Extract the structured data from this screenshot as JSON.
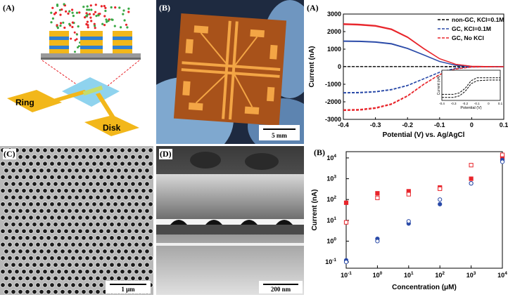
{
  "figure": {
    "schematic": {
      "label": "(A)",
      "ring_label": "Ring",
      "disk_label": "Disk"
    },
    "photo": {
      "label": "(B)",
      "scale": "5 mm"
    },
    "sem_top": {
      "label": "(C)",
      "scale": "1 μm"
    },
    "sem_cross": {
      "label": "(D)",
      "scale": "200 nm"
    },
    "colors": {
      "red": "#e8252b",
      "blue": "#2a4aa8",
      "black": "#000000",
      "gold": "#f2b71a",
      "substrate": "#8fd3ee"
    }
  },
  "chart_data": [
    {
      "label": "(A)",
      "type": "line",
      "xlabel": "Potential (V) vs. Ag/AgCl",
      "ylabel": "Current (nA)",
      "xlim": [
        -0.4,
        0.1
      ],
      "ylim": [
        -3000,
        3000
      ],
      "xticks": [
        "-0.4",
        "-0.3",
        "-0.2",
        "-0.1",
        "0",
        "0.1"
      ],
      "yticks": [
        "-3000",
        "-2000",
        "-1000",
        "0",
        "1000",
        "2000",
        "3000"
      ],
      "legend_position": "top-right",
      "series": [
        {
          "name": "non-GC, KCl=0.1M",
          "color": "#000000",
          "dash": true,
          "x": [
            -0.4,
            -0.3,
            -0.2,
            -0.1,
            0,
            0.1
          ],
          "y": [
            5,
            5,
            5,
            3,
            0,
            0
          ]
        },
        {
          "name": "GC, KCl=0.1M",
          "color": "#2a4aa8",
          "dash": true,
          "x": [
            -0.4,
            -0.35,
            -0.3,
            -0.25,
            -0.2,
            -0.15,
            -0.1,
            -0.05,
            0,
            0.1
          ],
          "y": [
            -1500,
            -1490,
            -1440,
            -1320,
            -1080,
            -700,
            -320,
            -90,
            -10,
            0
          ]
        },
        {
          "name": "GC, KCl=0.1M",
          "color": "#2a4aa8",
          "dash": false,
          "x": [
            -0.4,
            -0.35,
            -0.3,
            -0.25,
            -0.2,
            -0.15,
            -0.1,
            -0.05,
            0,
            0.1
          ],
          "y": [
            1470,
            1460,
            1420,
            1320,
            1050,
            680,
            300,
            80,
            10,
            0
          ]
        },
        {
          "name": "GC, No KCl",
          "color": "#e8252b",
          "dash": true,
          "x": [
            -0.4,
            -0.35,
            -0.3,
            -0.25,
            -0.2,
            -0.15,
            -0.1,
            -0.05,
            0,
            0.1
          ],
          "y": [
            -2500,
            -2480,
            -2380,
            -2150,
            -1680,
            -1020,
            -450,
            -130,
            -20,
            0
          ]
        },
        {
          "name": "GC, No KCl",
          "color": "#e8252b",
          "dash": false,
          "x": [
            -0.4,
            -0.35,
            -0.3,
            -0.25,
            -0.2,
            -0.15,
            -0.1,
            -0.05,
            0,
            0.1
          ],
          "y": [
            2450,
            2420,
            2350,
            2150,
            1700,
            1050,
            460,
            140,
            25,
            0
          ]
        }
      ],
      "legend": [
        {
          "name": "non-GC, KCl=0.1M",
          "color": "#000000"
        },
        {
          "name": "GC, KCl=0.1M",
          "color": "#2a4aa8"
        },
        {
          "name": "GC, No KCl",
          "color": "#e8252b"
        }
      ],
      "inset": {
        "xlabel": "Potential (V)",
        "ylabel": "Current (nA)",
        "xticks": [
          "-0.4",
          "-0.3",
          "-0.2",
          "-0.1",
          "0",
          "0.1"
        ],
        "xlim": [
          -0.4,
          0.1
        ],
        "ylim": [
          -1,
          1
        ],
        "series": [
          {
            "x": [
              -0.4,
              -0.3,
              -0.25,
              -0.2,
              -0.15,
              -0.1,
              0,
              0.1
            ],
            "y": [
              -0.6,
              -0.6,
              -0.5,
              -0.2,
              0.3,
              0.5,
              0.5,
              0.5
            ]
          },
          {
            "x": [
              -0.4,
              -0.3,
              -0.25,
              -0.2,
              -0.15,
              -0.1,
              0,
              0.1
            ],
            "y": [
              -0.8,
              -0.8,
              -0.7,
              -0.4,
              0.1,
              0.3,
              0.35,
              0.35
            ]
          }
        ]
      }
    },
    {
      "label": "(B)",
      "type": "scatter",
      "xlabel": "Concentration (μM)",
      "ylabel": "Current (nA)",
      "xscale": "log",
      "yscale": "log",
      "xlim": [
        0.1,
        10000
      ],
      "ylim": [
        0.05,
        20000
      ],
      "xticks": [
        {
          "base": "10",
          "exp": "-1"
        },
        {
          "base": "10",
          "exp": "0"
        },
        {
          "base": "10",
          "exp": "1"
        },
        {
          "base": "10",
          "exp": "2"
        },
        {
          "base": "10",
          "exp": "3"
        },
        {
          "base": "10",
          "exp": "4"
        }
      ],
      "yticks": [
        {
          "base": "10",
          "exp": "-1"
        },
        {
          "base": "10",
          "exp": "0"
        },
        {
          "base": "10",
          "exp": "1"
        },
        {
          "base": "10",
          "exp": "2"
        },
        {
          "base": "10",
          "exp": "3"
        },
        {
          "base": "10",
          "exp": "4"
        }
      ],
      "series": [
        {
          "color": "#e8252b",
          "marker": "square-filled",
          "x": [
            0.1,
            1,
            10,
            100,
            1000,
            10000
          ],
          "y": [
            70,
            200,
            250,
            380,
            1000,
            10000
          ]
        },
        {
          "color": "#e8252b",
          "marker": "square-open",
          "x": [
            0.1,
            1,
            10,
            100,
            1000,
            10000
          ],
          "y": [
            8,
            120,
            180,
            330,
            4500,
            14000
          ]
        },
        {
          "color": "#2a4aa8",
          "marker": "circle-filled",
          "x": [
            0.1,
            1,
            10,
            100,
            1000,
            10000
          ],
          "y": [
            0.12,
            1.3,
            7,
            60,
            600,
            8000
          ]
        },
        {
          "color": "#2a4aa8",
          "marker": "circle-open",
          "x": [
            0.1,
            1,
            10,
            100,
            1000,
            10000
          ],
          "y": [
            0.1,
            1,
            9,
            100,
            600,
            6500
          ]
        }
      ]
    }
  ]
}
